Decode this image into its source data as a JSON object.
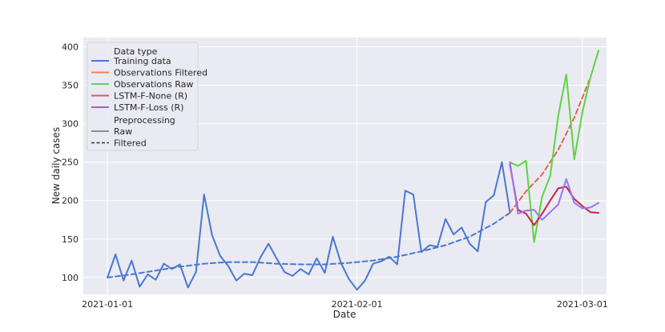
{
  "chart_data": {
    "type": "line",
    "xlabel": "Date",
    "ylabel": "New daily cases",
    "x_ticks": [
      "2021-01-01",
      "2021-02-01",
      "2021-03-01"
    ],
    "y_ticks": [
      100,
      150,
      200,
      250,
      300,
      350,
      400
    ],
    "xlim": [
      "2020-12-29",
      "2021-03-04"
    ],
    "ylim": [
      78,
      412
    ],
    "grid": true,
    "legend_position": "upper-left",
    "legend": {
      "hue_title": "Data type",
      "style_title": "Preprocessing",
      "hue_entries": [
        {
          "label": "Training data",
          "color": "#4878d0"
        },
        {
          "label": "Observations Filtered",
          "color": "#ee854a"
        },
        {
          "label": "Observations Raw",
          "color": "#6acc64"
        },
        {
          "label": "LSTM-F-None (R)",
          "color": "#d65f5f"
        },
        {
          "label": "LSTM-F-Loss (R)",
          "color": "#956cb4"
        }
      ],
      "style_entries": [
        {
          "label": "Raw",
          "dash": "solid"
        },
        {
          "label": "Filtered",
          "dash": "dashed"
        }
      ]
    },
    "series": [
      {
        "name": "Training data",
        "preprocessing": "Raw",
        "color": "#4878d0",
        "dash": "solid",
        "width": 2,
        "x": [
          "2021-01-01",
          "2021-01-02",
          "2021-01-03",
          "2021-01-04",
          "2021-01-05",
          "2021-01-06",
          "2021-01-07",
          "2021-01-08",
          "2021-01-09",
          "2021-01-10",
          "2021-01-11",
          "2021-01-12",
          "2021-01-13",
          "2021-01-14",
          "2021-01-15",
          "2021-01-16",
          "2021-01-17",
          "2021-01-18",
          "2021-01-19",
          "2021-01-20",
          "2021-01-21",
          "2021-01-22",
          "2021-01-23",
          "2021-01-24",
          "2021-01-25",
          "2021-01-26",
          "2021-01-27",
          "2021-01-28",
          "2021-01-29",
          "2021-01-30",
          "2021-01-31",
          "2021-02-01",
          "2021-02-02",
          "2021-02-03",
          "2021-02-04",
          "2021-02-05",
          "2021-02-06",
          "2021-02-07",
          "2021-02-08",
          "2021-02-09",
          "2021-02-10",
          "2021-02-11",
          "2021-02-12",
          "2021-02-13",
          "2021-02-14",
          "2021-02-15",
          "2021-02-16",
          "2021-02-17",
          "2021-02-18",
          "2021-02-19",
          "2021-02-20"
        ],
        "y": [
          100,
          130,
          96,
          122,
          88,
          104,
          97,
          118,
          111,
          117,
          87,
          107,
          208,
          155,
          128,
          115,
          96,
          105,
          103,
          126,
          144,
          125,
          107,
          102,
          111,
          104,
          125,
          106,
          153,
          119,
          98,
          84,
          96,
          118,
          121,
          127,
          117,
          213,
          208,
          133,
          142,
          140,
          176,
          156,
          165,
          144,
          134,
          198,
          207,
          250,
          185
        ]
      },
      {
        "name": "Training data",
        "preprocessing": "Filtered",
        "color": "#4878d0",
        "dash": "dashed",
        "width": 2,
        "x": [
          "2021-01-01",
          "2021-01-04",
          "2021-01-07",
          "2021-01-10",
          "2021-01-13",
          "2021-01-16",
          "2021-01-19",
          "2021-01-22",
          "2021-01-25",
          "2021-01-28",
          "2021-01-31",
          "2021-02-03",
          "2021-02-06",
          "2021-02-09",
          "2021-02-12",
          "2021-02-15",
          "2021-02-18",
          "2021-02-20"
        ],
        "y": [
          100,
          104,
          109,
          114,
          118,
          120,
          120,
          118,
          117,
          117,
          119,
          122,
          127,
          134,
          142,
          153,
          170,
          184
        ]
      },
      {
        "name": "Observations Filtered",
        "preprocessing": "Filtered",
        "color": "#dd6650",
        "dash": "dashed",
        "width": 2,
        "x": [
          "2021-02-20",
          "2021-02-22",
          "2021-02-24",
          "2021-02-26",
          "2021-02-28",
          "2021-03-02"
        ],
        "y": [
          184,
          212,
          234,
          266,
          308,
          360
        ]
      },
      {
        "name": "Observations Raw",
        "preprocessing": "Raw",
        "color": "#5ed43f",
        "dash": "solid",
        "width": 2,
        "x": [
          "2021-02-20",
          "2021-02-21",
          "2021-02-22",
          "2021-02-23",
          "2021-02-24",
          "2021-02-25",
          "2021-02-26",
          "2021-02-27",
          "2021-02-28",
          "2021-03-01",
          "2021-03-02",
          "2021-03-03"
        ],
        "y": [
          250,
          245,
          252,
          146,
          205,
          232,
          310,
          364,
          254,
          315,
          360,
          395
        ]
      },
      {
        "name": "LSTM-F-None (R)",
        "preprocessing": "Raw",
        "color": "#c8234a",
        "dash": "solid",
        "width": 2,
        "x": [
          "2021-02-20",
          "2021-02-21",
          "2021-02-22",
          "2021-02-23",
          "2021-02-24",
          "2021-02-25",
          "2021-02-26",
          "2021-02-27",
          "2021-02-28",
          "2021-03-01",
          "2021-03-02",
          "2021-03-03"
        ],
        "y": [
          247,
          188,
          183,
          168,
          183,
          200,
          216,
          218,
          202,
          193,
          185,
          184
        ]
      },
      {
        "name": "LSTM-F-Loss (R)",
        "preprocessing": "Raw",
        "color": "#9b73f0",
        "dash": "solid",
        "width": 2,
        "x": [
          "2021-02-20",
          "2021-02-21",
          "2021-02-22",
          "2021-02-23",
          "2021-02-24",
          "2021-02-25",
          "2021-02-26",
          "2021-02-27",
          "2021-02-28",
          "2021-03-01",
          "2021-03-02",
          "2021-03-03"
        ],
        "y": [
          250,
          183,
          187,
          188,
          175,
          185,
          195,
          228,
          197,
          190,
          191,
          197
        ]
      }
    ]
  }
}
